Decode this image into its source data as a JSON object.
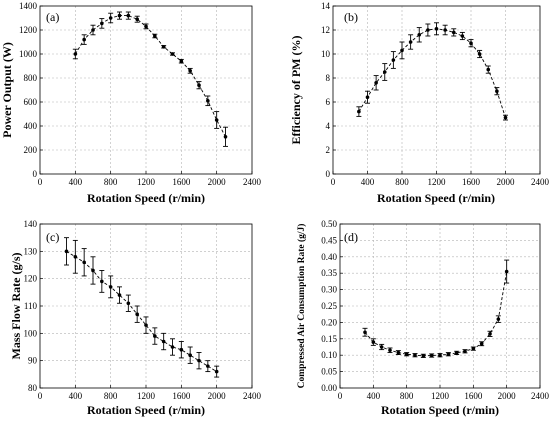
{
  "figure": {
    "background": "#ffffff",
    "marker_color": "#000000",
    "curve_style": "dashed"
  },
  "chart_data": [
    {
      "type": "scatter",
      "panel_label": "(a)",
      "title": "",
      "xlabel": "Rotation Speed (r/min)",
      "ylabel": "Power Output (W)",
      "xlim": [
        0,
        2400
      ],
      "ylim": [
        0,
        1400
      ],
      "xticks": [
        0,
        400,
        800,
        1200,
        1600,
        2000,
        2400
      ],
      "yticks": [
        0,
        200,
        400,
        600,
        800,
        1000,
        1200,
        1400
      ],
      "grid": true,
      "error_bars": true,
      "points": [
        {
          "x": 400,
          "y": 1000,
          "err": 40
        },
        {
          "x": 500,
          "y": 1120,
          "err": 40
        },
        {
          "x": 600,
          "y": 1200,
          "err": 40
        },
        {
          "x": 700,
          "y": 1255,
          "err": 40
        },
        {
          "x": 800,
          "y": 1300,
          "err": 40
        },
        {
          "x": 900,
          "y": 1320,
          "err": 30
        },
        {
          "x": 1000,
          "y": 1320,
          "err": 30
        },
        {
          "x": 1100,
          "y": 1290,
          "err": 25
        },
        {
          "x": 1200,
          "y": 1230,
          "err": 20
        },
        {
          "x": 1300,
          "y": 1150,
          "err": 15
        },
        {
          "x": 1400,
          "y": 1060,
          "err": 10
        },
        {
          "x": 1500,
          "y": 1000,
          "err": 10
        },
        {
          "x": 1600,
          "y": 940,
          "err": 15
        },
        {
          "x": 1700,
          "y": 860,
          "err": 20
        },
        {
          "x": 1800,
          "y": 740,
          "err": 30
        },
        {
          "x": 1900,
          "y": 610,
          "err": 40
        },
        {
          "x": 2000,
          "y": 450,
          "err": 70
        },
        {
          "x": 2100,
          "y": 310,
          "err": 80
        }
      ]
    },
    {
      "type": "scatter",
      "panel_label": "(b)",
      "title": "",
      "xlabel": "Rotation Speed (r/min)",
      "ylabel": "Efficiency of PM (%)",
      "xlim": [
        0,
        2400
      ],
      "ylim": [
        0,
        14
      ],
      "xticks": [
        0,
        400,
        800,
        1200,
        1600,
        2000,
        2400
      ],
      "yticks": [
        0,
        2,
        4,
        6,
        8,
        10,
        12,
        14
      ],
      "grid": true,
      "error_bars": true,
      "points": [
        {
          "x": 300,
          "y": 5.2,
          "err": 0.4
        },
        {
          "x": 400,
          "y": 6.4,
          "err": 0.5
        },
        {
          "x": 500,
          "y": 7.6,
          "err": 0.6
        },
        {
          "x": 600,
          "y": 8.5,
          "err": 0.7
        },
        {
          "x": 700,
          "y": 9.5,
          "err": 0.7
        },
        {
          "x": 800,
          "y": 10.3,
          "err": 0.7
        },
        {
          "x": 900,
          "y": 11.0,
          "err": 0.6
        },
        {
          "x": 1000,
          "y": 11.6,
          "err": 0.6
        },
        {
          "x": 1100,
          "y": 12.0,
          "err": 0.5
        },
        {
          "x": 1200,
          "y": 12.1,
          "err": 0.5
        },
        {
          "x": 1300,
          "y": 12.0,
          "err": 0.4
        },
        {
          "x": 1400,
          "y": 11.8,
          "err": 0.3
        },
        {
          "x": 1500,
          "y": 11.5,
          "err": 0.3
        },
        {
          "x": 1600,
          "y": 10.9,
          "err": 0.3
        },
        {
          "x": 1700,
          "y": 10.0,
          "err": 0.3
        },
        {
          "x": 1800,
          "y": 8.7,
          "err": 0.3
        },
        {
          "x": 1900,
          "y": 6.9,
          "err": 0.3
        },
        {
          "x": 2000,
          "y": 4.7,
          "err": 0.2
        }
      ]
    },
    {
      "type": "scatter",
      "panel_label": "(c)",
      "title": "",
      "xlabel": "Rotation Speed (r/min)",
      "ylabel": "Mass Flow Rate (g/s)",
      "xlim": [
        0,
        2400
      ],
      "ylim": [
        80,
        140
      ],
      "xticks": [
        0,
        400,
        800,
        1200,
        1600,
        2000,
        2400
      ],
      "yticks": [
        80,
        90,
        100,
        110,
        120,
        130,
        140
      ],
      "grid": true,
      "error_bars": true,
      "points": [
        {
          "x": 300,
          "y": 130,
          "err": 5
        },
        {
          "x": 400,
          "y": 128,
          "err": 6
        },
        {
          "x": 500,
          "y": 126,
          "err": 5
        },
        {
          "x": 600,
          "y": 123,
          "err": 5
        },
        {
          "x": 700,
          "y": 119,
          "err": 4
        },
        {
          "x": 800,
          "y": 117,
          "err": 4
        },
        {
          "x": 900,
          "y": 114,
          "err": 3
        },
        {
          "x": 1000,
          "y": 111,
          "err": 3
        },
        {
          "x": 1100,
          "y": 107,
          "err": 3
        },
        {
          "x": 1200,
          "y": 103,
          "err": 3
        },
        {
          "x": 1300,
          "y": 99,
          "err": 3
        },
        {
          "x": 1400,
          "y": 97,
          "err": 3
        },
        {
          "x": 1500,
          "y": 95,
          "err": 3
        },
        {
          "x": 1600,
          "y": 94,
          "err": 3
        },
        {
          "x": 1700,
          "y": 92,
          "err": 3
        },
        {
          "x": 1800,
          "y": 90,
          "err": 3
        },
        {
          "x": 1900,
          "y": 88,
          "err": 2
        },
        {
          "x": 2000,
          "y": 86,
          "err": 2
        }
      ]
    },
    {
      "type": "scatter",
      "panel_label": "(d)",
      "title": "",
      "xlabel": "Rotation Speed (r/min)",
      "ylabel": "Compressed Air Consumption Rate (g/J)",
      "xlim": [
        0,
        2400
      ],
      "ylim": [
        0,
        0.5
      ],
      "xticks": [
        0,
        400,
        800,
        1200,
        1600,
        2000,
        2400
      ],
      "yticks": [
        0,
        0.05,
        0.1,
        0.15,
        0.2,
        0.25,
        0.3,
        0.35,
        0.4,
        0.45,
        0.5
      ],
      "ytick_labels": [
        "0.00",
        "0.05",
        "0.10",
        "0.15",
        "0.20",
        "0.25",
        "0.30",
        "0.35",
        "0.40",
        "0.45",
        "0.50"
      ],
      "grid": true,
      "error_bars": true,
      "points": [
        {
          "x": 300,
          "y": 0.17,
          "err": 0.012
        },
        {
          "x": 400,
          "y": 0.14,
          "err": 0.01
        },
        {
          "x": 500,
          "y": 0.125,
          "err": 0.008
        },
        {
          "x": 600,
          "y": 0.115,
          "err": 0.007
        },
        {
          "x": 700,
          "y": 0.108,
          "err": 0.006
        },
        {
          "x": 800,
          "y": 0.103,
          "err": 0.005
        },
        {
          "x": 900,
          "y": 0.1,
          "err": 0.005
        },
        {
          "x": 1000,
          "y": 0.098,
          "err": 0.005
        },
        {
          "x": 1100,
          "y": 0.099,
          "err": 0.005
        },
        {
          "x": 1200,
          "y": 0.1,
          "err": 0.005
        },
        {
          "x": 1300,
          "y": 0.103,
          "err": 0.005
        },
        {
          "x": 1400,
          "y": 0.107,
          "err": 0.005
        },
        {
          "x": 1500,
          "y": 0.112,
          "err": 0.005
        },
        {
          "x": 1600,
          "y": 0.12,
          "err": 0.005
        },
        {
          "x": 1700,
          "y": 0.135,
          "err": 0.006
        },
        {
          "x": 1800,
          "y": 0.165,
          "err": 0.008
        },
        {
          "x": 1900,
          "y": 0.21,
          "err": 0.01
        },
        {
          "x": 2000,
          "y": 0.355,
          "err": 0.035
        }
      ]
    }
  ]
}
